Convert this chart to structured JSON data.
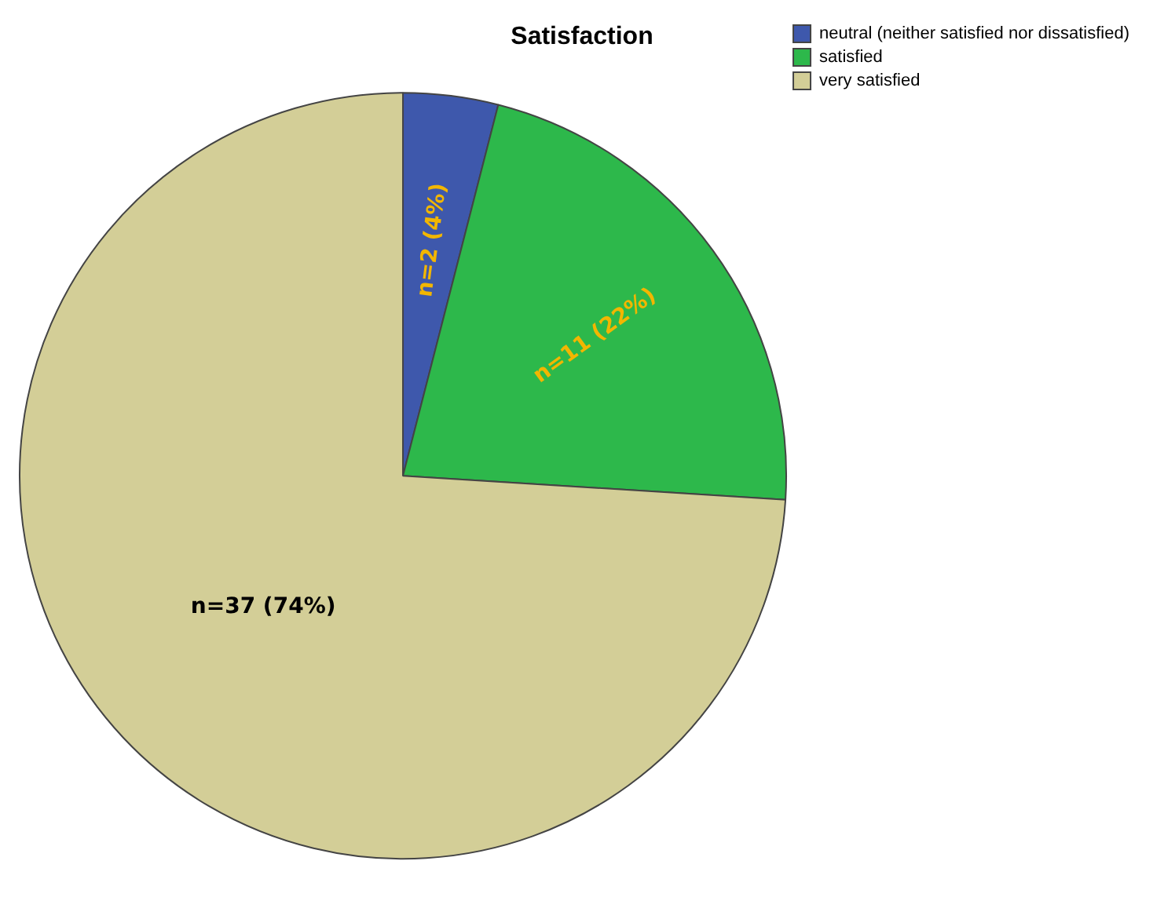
{
  "chart_data": {
    "type": "pie",
    "title": "Satisfaction",
    "categories": [
      "neutral (neither satisfied nor dissatisfied)",
      "satisfied",
      "very satisfied"
    ],
    "values": [
      2,
      11,
      37
    ],
    "colors": [
      "#3e58ac",
      "#2db84b",
      "#d3ce97"
    ],
    "value_labels": [
      "n=2 (4%)",
      "n=11 (22%)",
      "n=37 (74%)"
    ],
    "legend": "top right"
  }
}
